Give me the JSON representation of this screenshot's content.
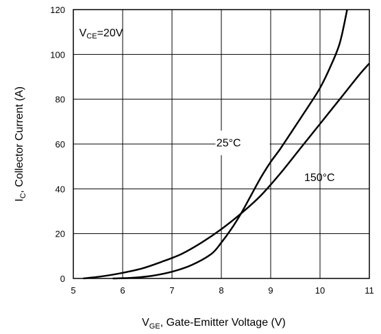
{
  "chart_data": {
    "type": "line",
    "xlabel": {
      "main": "V",
      "sub": "GE",
      "rest": ", Gate-Emitter Voltage (V)"
    },
    "ylabel": {
      "main": "I",
      "sub": "C",
      "rest": ", Collector Current (A)"
    },
    "condition": {
      "main": "V",
      "sub": "CE",
      "rest": "=20V"
    },
    "xlim": [
      5,
      11
    ],
    "ylim": [
      0,
      120
    ],
    "xticks": [
      5,
      6,
      7,
      8,
      9,
      10,
      11
    ],
    "yticks": [
      0,
      20,
      40,
      60,
      80,
      100,
      120
    ],
    "grid": true,
    "series": [
      {
        "name": "25°C",
        "x": [
          5.8,
          6.2,
          6.6,
          7.0,
          7.4,
          7.8,
          8.0,
          8.2,
          8.4,
          8.6,
          8.8,
          9.0,
          9.2,
          9.5,
          9.8,
          10.0,
          10.2,
          10.4,
          10.55
        ],
        "y": [
          0,
          0.3,
          1.2,
          3,
          6,
          11,
          16,
          22,
          29,
          37,
          45,
          52,
          58,
          68,
          78,
          85,
          94,
          105,
          120
        ]
      },
      {
        "name": "150°C",
        "x": [
          5.2,
          5.6,
          6.0,
          6.4,
          6.8,
          7.2,
          7.6,
          8.0,
          8.4,
          8.8,
          9.2,
          9.6,
          10.0,
          10.4,
          10.8,
          11.0
        ],
        "y": [
          0,
          1,
          2.5,
          4.5,
          7.5,
          11,
          16,
          22,
          29,
          37,
          47,
          58,
          69,
          80,
          91,
          96
        ]
      }
    ]
  }
}
